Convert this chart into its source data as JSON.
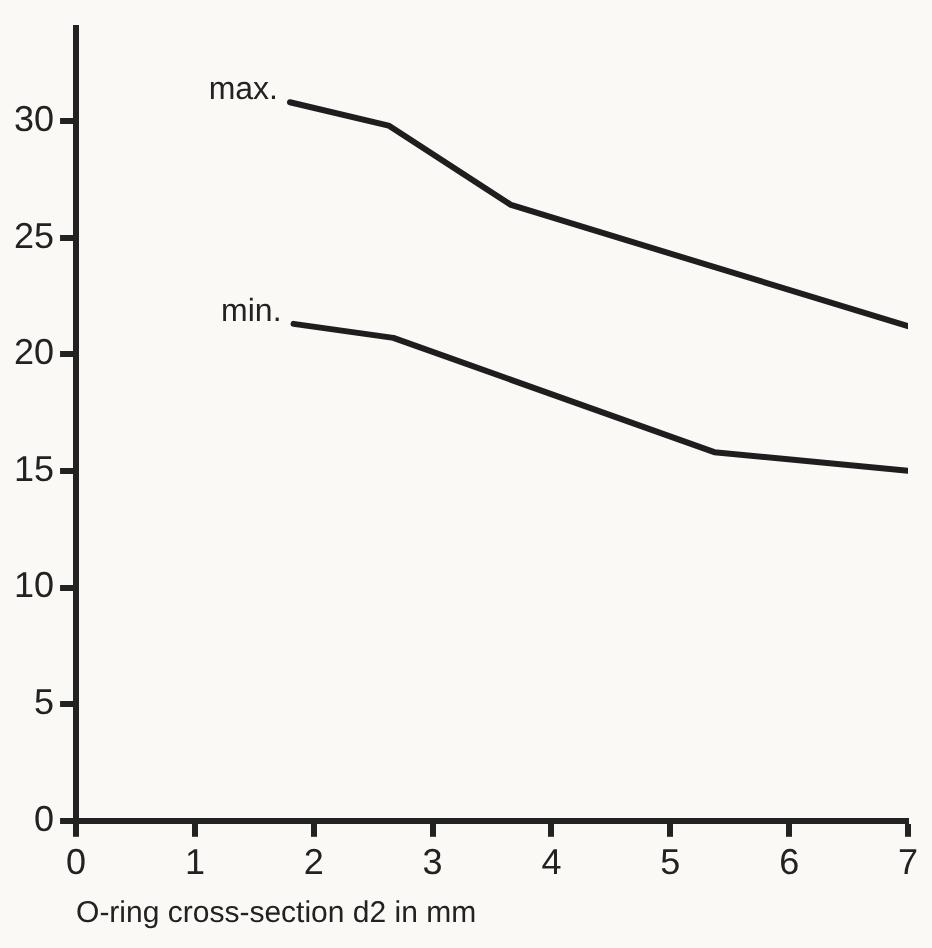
{
  "chart_data": {
    "type": "line",
    "xlabel": "O-ring cross-section d2 in mm",
    "series": [
      {
        "name": "max.",
        "color": "#1e1e1e",
        "x": [
          1.8,
          2.63,
          3.66,
          7.0
        ],
        "values": [
          30.8,
          29.8,
          26.4,
          21.2
        ]
      },
      {
        "name": "min.",
        "color": "#1e1e1e",
        "x": [
          1.83,
          2.67,
          5.37,
          7.0
        ],
        "values": [
          21.3,
          20.7,
          15.8,
          15.0
        ]
      }
    ],
    "xlim": [
      0,
      7
    ],
    "xticks": [
      0,
      1,
      2,
      3,
      4,
      5,
      6,
      7
    ],
    "ylim": [
      0,
      34
    ],
    "yticks": [
      0,
      5,
      10,
      15,
      20,
      25,
      30
    ],
    "grid": false,
    "legend": false,
    "marker": "none",
    "line_style": "solid"
  }
}
